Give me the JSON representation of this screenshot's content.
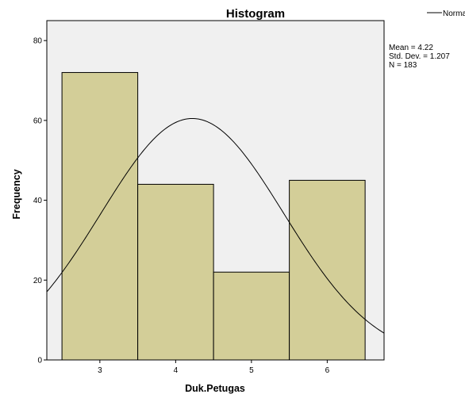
{
  "chart_data": {
    "type": "bar",
    "subtype": "histogram",
    "title": "Histogram",
    "xlabel": "Duk.Petugas",
    "ylabel": "Frequency",
    "categories": [
      "3",
      "4",
      "5",
      "6"
    ],
    "bins": [
      {
        "center": 3,
        "from": 2.5,
        "to": 3.5,
        "value": 72
      },
      {
        "center": 4,
        "from": 3.5,
        "to": 4.5,
        "value": 44
      },
      {
        "center": 5,
        "from": 4.5,
        "to": 5.5,
        "value": 22
      },
      {
        "center": 6,
        "from": 5.5,
        "to": 6.5,
        "value": 45
      }
    ],
    "xlim": [
      2.3,
      6.75
    ],
    "ylim": [
      0,
      85
    ],
    "x_ticks": [
      3,
      4,
      5,
      6
    ],
    "y_ticks": [
      0,
      20,
      40,
      60,
      80
    ],
    "normal_curve": {
      "mean": 4.22,
      "std": 1.207,
      "n": 183,
      "bin_width": 1
    },
    "stats": {
      "mean": "Mean = 4.22",
      "std": "Std. Dev. = 1.207",
      "n": "N = 183"
    },
    "legend": {
      "label": "Normal",
      "position": "top-right"
    },
    "grid": false,
    "colors": {
      "bar_fill": "#d3ce98",
      "bar_stroke": "#000000",
      "plot_bg": "#f0f0f0",
      "curve": "#000000"
    }
  }
}
